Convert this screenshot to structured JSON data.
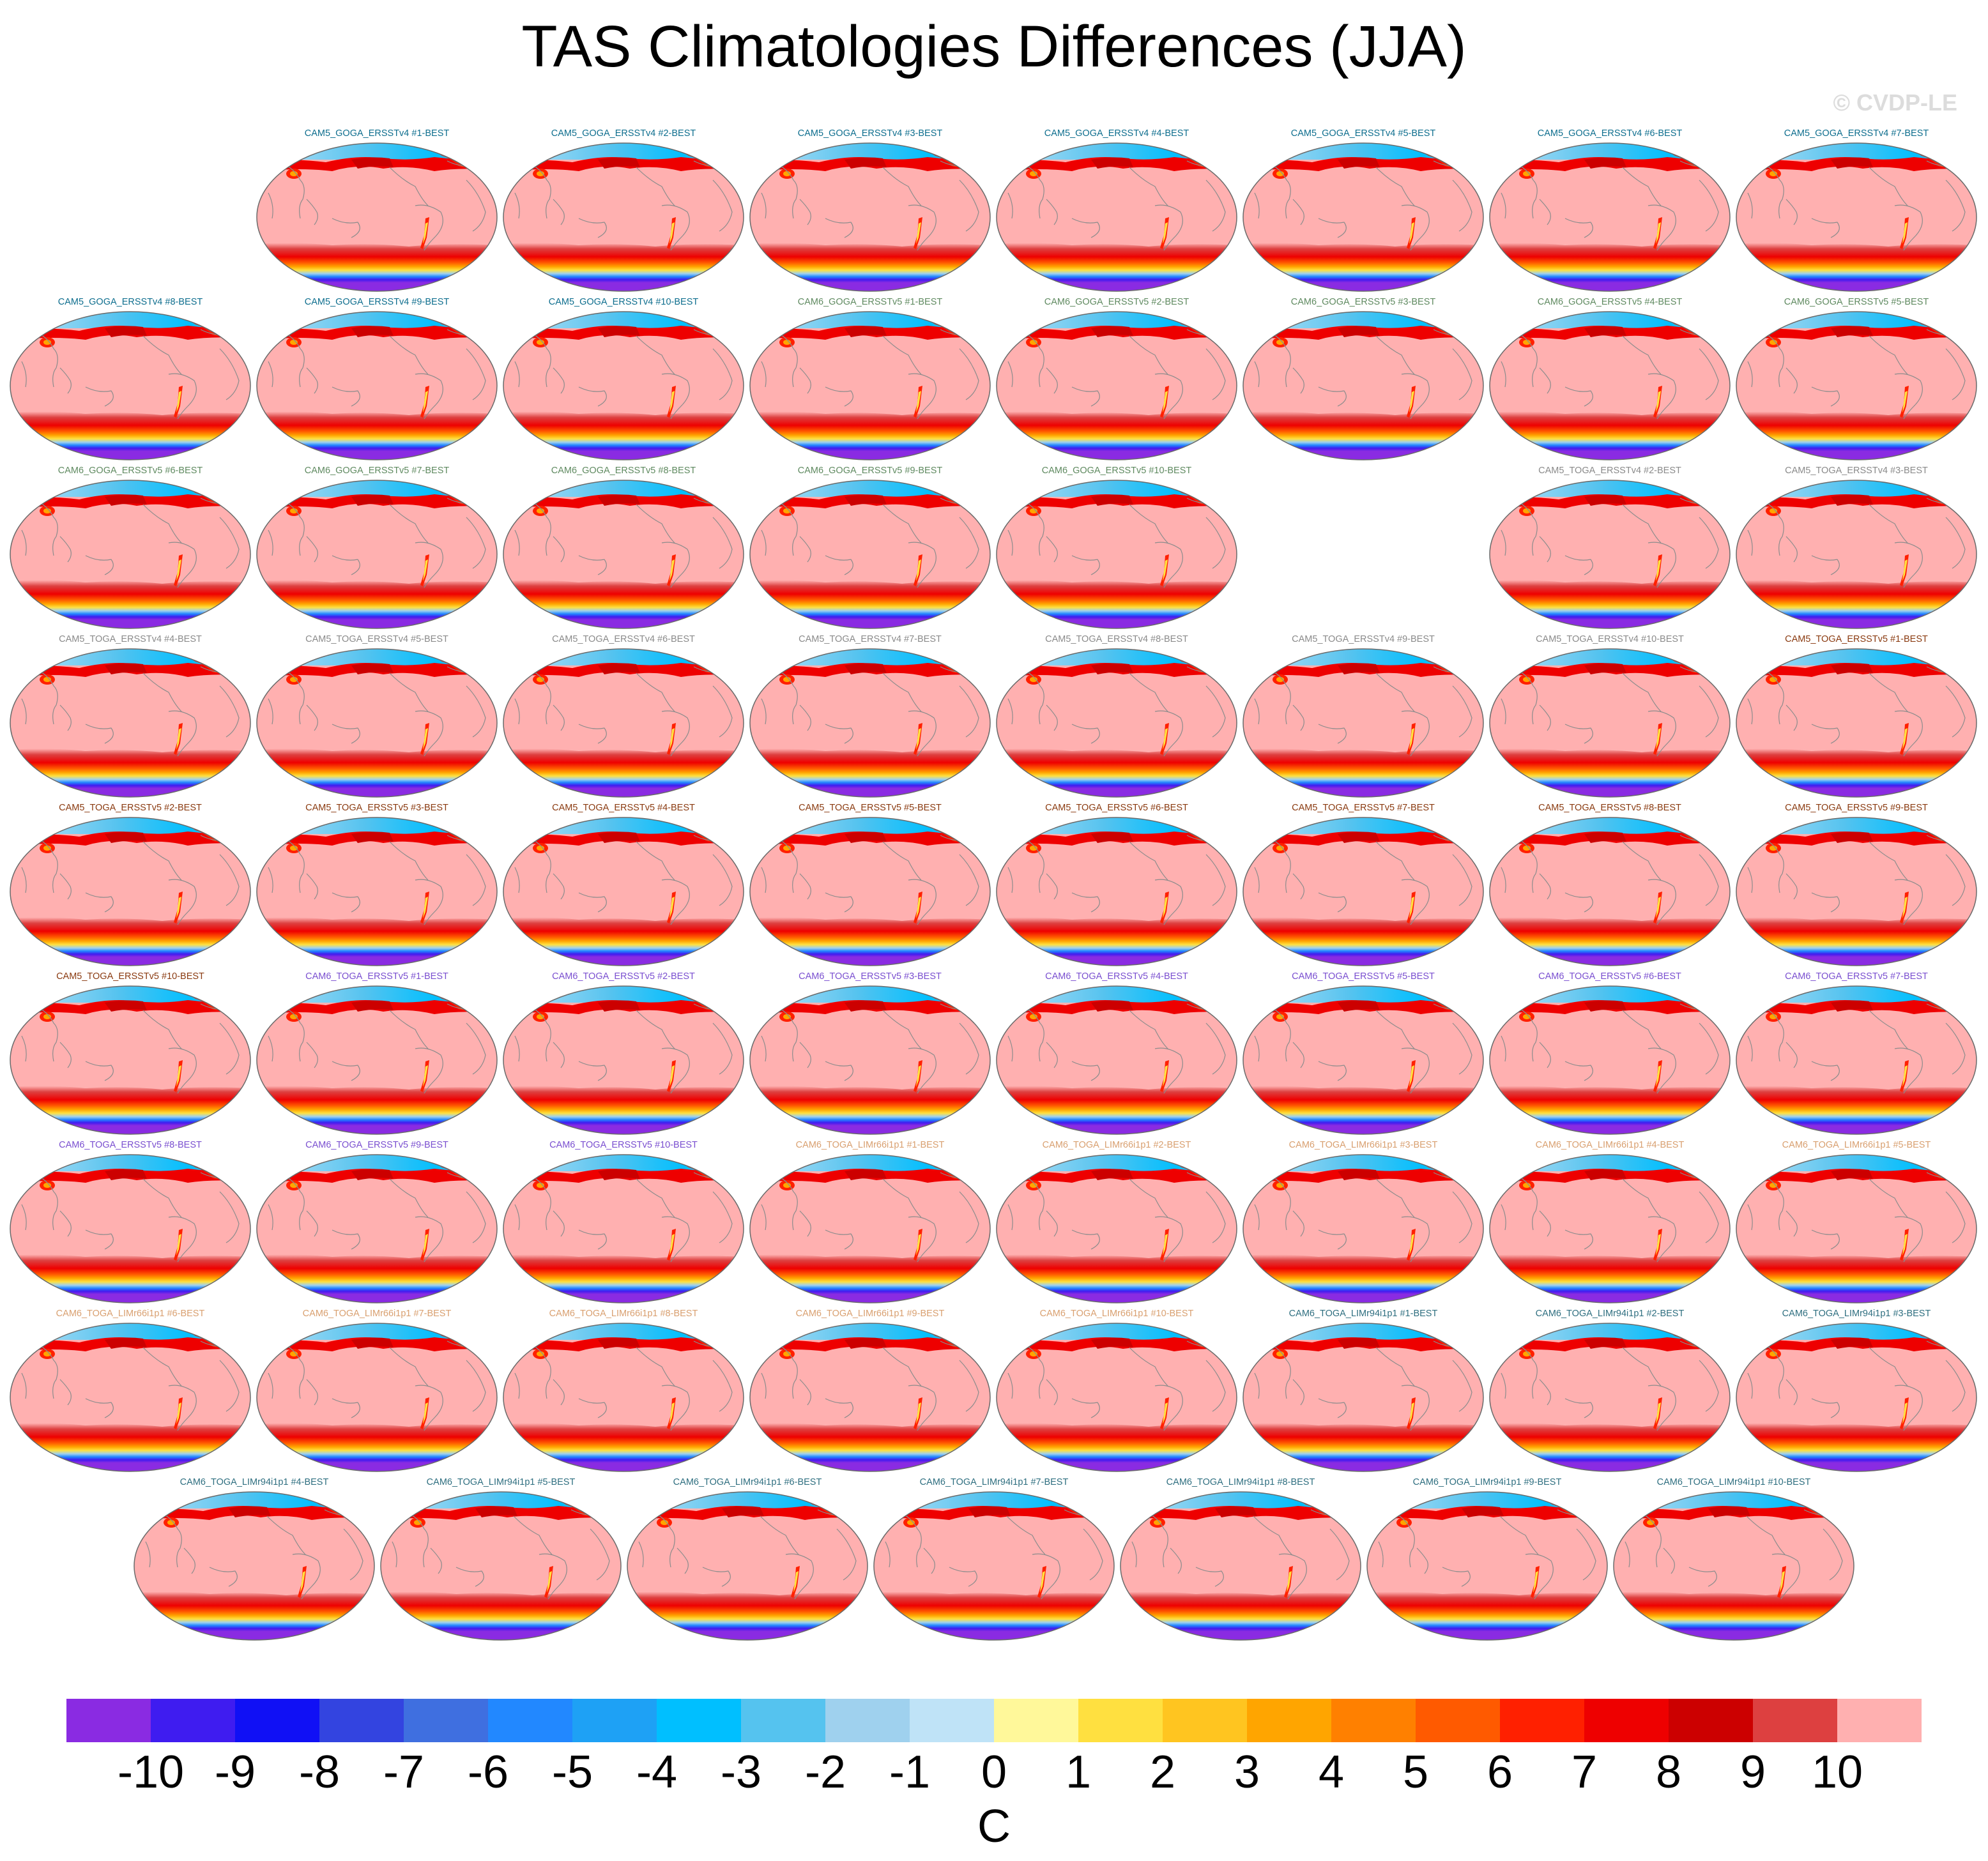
{
  "title": "TAS Climatologies Differences (JJA)",
  "credit": "© CVDP-LE",
  "chart_data": {
    "type": "map-panel-grid",
    "variable": "TAS",
    "season": "JJA",
    "projection": "robinson",
    "units": "C",
    "colorbar": {
      "ticks": [
        "-10",
        "-9",
        "-8",
        "-7",
        "-6",
        "-5",
        "-4",
        "-3",
        "-2",
        "-1",
        "0",
        "1",
        "2",
        "3",
        "4",
        "5",
        "6",
        "7",
        "8",
        "9",
        "10"
      ],
      "levels": [
        -10,
        -9,
        -8,
        -7,
        -6,
        -5,
        -4,
        -3,
        -2,
        -1,
        0,
        1,
        2,
        3,
        4,
        5,
        6,
        7,
        8,
        9,
        10
      ],
      "colors": [
        "#8a2be2",
        "#3f1cf0",
        "#1010f5",
        "#3344e0",
        "#3f6fe0",
        "#2288ff",
        "#1ea1f5",
        "#00bfff",
        "#55c3ef",
        "#9fd1ee",
        "#bfe3f7",
        "#fff89a",
        "#ffe040",
        "#ffc520",
        "#ffa500",
        "#ff8000",
        "#ff5a00",
        "#ff2000",
        "#ee0000",
        "#cc0000",
        "#dd4040",
        "#ffb0b0"
      ],
      "label": "C"
    },
    "panels": [
      {
        "label": "CAM5_GOGA_ERSSTv4 #1-BEST",
        "group": "CAM5_GOGA_ERSSTv4",
        "color": "#0e6e8e"
      },
      {
        "label": "CAM5_GOGA_ERSSTv4 #2-BEST",
        "group": "CAM5_GOGA_ERSSTv4",
        "color": "#0e6e8e"
      },
      {
        "label": "CAM5_GOGA_ERSSTv4 #3-BEST",
        "group": "CAM5_GOGA_ERSSTv4",
        "color": "#0e6e8e"
      },
      {
        "label": "CAM5_GOGA_ERSSTv4 #4-BEST",
        "group": "CAM5_GOGA_ERSSTv4",
        "color": "#0e6e8e"
      },
      {
        "label": "CAM5_GOGA_ERSSTv4 #5-BEST",
        "group": "CAM5_GOGA_ERSSTv4",
        "color": "#0e6e8e"
      },
      {
        "label": "CAM5_GOGA_ERSSTv4 #6-BEST",
        "group": "CAM5_GOGA_ERSSTv4",
        "color": "#0e6e8e"
      },
      {
        "label": "CAM5_GOGA_ERSSTv4 #7-BEST",
        "group": "CAM5_GOGA_ERSSTv4",
        "color": "#0e6e8e"
      },
      {
        "label": "CAM5_GOGA_ERSSTv4 #8-BEST",
        "group": "CAM5_GOGA_ERSSTv4",
        "color": "#0e6e8e"
      },
      {
        "label": "CAM5_GOGA_ERSSTv4 #9-BEST",
        "group": "CAM5_GOGA_ERSSTv4",
        "color": "#0e6e8e"
      },
      {
        "label": "CAM5_GOGA_ERSSTv4 #10-BEST",
        "group": "CAM5_GOGA_ERSSTv4",
        "color": "#0e6e8e"
      },
      {
        "label": "CAM6_GOGA_ERSSTv5 #1-BEST",
        "group": "CAM6_GOGA_ERSSTv5",
        "color": "#5f8a60"
      },
      {
        "label": "CAM6_GOGA_ERSSTv5 #2-BEST",
        "group": "CAM6_GOGA_ERSSTv5",
        "color": "#5f8a60"
      },
      {
        "label": "CAM6_GOGA_ERSSTv5 #3-BEST",
        "group": "CAM6_GOGA_ERSSTv5",
        "color": "#5f8a60"
      },
      {
        "label": "CAM6_GOGA_ERSSTv5 #4-BEST",
        "group": "CAM6_GOGA_ERSSTv5",
        "color": "#5f8a60"
      },
      {
        "label": "CAM6_GOGA_ERSSTv5 #5-BEST",
        "group": "CAM6_GOGA_ERSSTv5",
        "color": "#5f8a60"
      },
      {
        "label": "CAM6_GOGA_ERSSTv5 #6-BEST",
        "group": "CAM6_GOGA_ERSSTv5",
        "color": "#5f8a60"
      },
      {
        "label": "CAM6_GOGA_ERSSTv5 #7-BEST",
        "group": "CAM6_GOGA_ERSSTv5",
        "color": "#5f8a60"
      },
      {
        "label": "CAM6_GOGA_ERSSTv5 #8-BEST",
        "group": "CAM6_GOGA_ERSSTv5",
        "color": "#5f8a60"
      },
      {
        "label": "CAM6_GOGA_ERSSTv5 #9-BEST",
        "group": "CAM6_GOGA_ERSSTv5",
        "color": "#5f8a60"
      },
      {
        "label": "CAM6_GOGA_ERSSTv5 #10-BEST",
        "group": "CAM6_GOGA_ERSSTv5",
        "color": "#5f8a60"
      },
      {
        "label": "CAM5_TOGA_ERSSTv4 #2-BEST",
        "group": "CAM5_TOGA_ERSSTv4",
        "color": "#8a8a8a"
      },
      {
        "label": "CAM5_TOGA_ERSSTv4 #3-BEST",
        "group": "CAM5_TOGA_ERSSTv4",
        "color": "#8a8a8a"
      },
      {
        "label": "CAM5_TOGA_ERSSTv4 #4-BEST",
        "group": "CAM5_TOGA_ERSSTv4",
        "color": "#8a8a8a"
      },
      {
        "label": "CAM5_TOGA_ERSSTv4 #5-BEST",
        "group": "CAM5_TOGA_ERSSTv4",
        "color": "#8a8a8a"
      },
      {
        "label": "CAM5_TOGA_ERSSTv4 #6-BEST",
        "group": "CAM5_TOGA_ERSSTv4",
        "color": "#8a8a8a"
      },
      {
        "label": "CAM5_TOGA_ERSSTv4 #7-BEST",
        "group": "CAM5_TOGA_ERSSTv4",
        "color": "#8a8a8a"
      },
      {
        "label": "CAM5_TOGA_ERSSTv4 #8-BEST",
        "group": "CAM5_TOGA_ERSSTv4",
        "color": "#8a8a8a"
      },
      {
        "label": "CAM5_TOGA_ERSSTv4 #9-BEST",
        "group": "CAM5_TOGA_ERSSTv4",
        "color": "#8a8a8a"
      },
      {
        "label": "CAM5_TOGA_ERSSTv4 #10-BEST",
        "group": "CAM5_TOGA_ERSSTv4",
        "color": "#8a8a8a"
      },
      {
        "label": "CAM5_TOGA_ERSSTv5 #1-BEST",
        "group": "CAM5_TOGA_ERSSTv5",
        "color": "#8a3a10"
      },
      {
        "label": "CAM5_TOGA_ERSSTv5 #2-BEST",
        "group": "CAM5_TOGA_ERSSTv5",
        "color": "#8a3a10"
      },
      {
        "label": "CAM5_TOGA_ERSSTv5 #3-BEST",
        "group": "CAM5_TOGA_ERSSTv5",
        "color": "#8a3a10"
      },
      {
        "label": "CAM5_TOGA_ERSSTv5 #4-BEST",
        "group": "CAM5_TOGA_ERSSTv5",
        "color": "#8a3a10"
      },
      {
        "label": "CAM5_TOGA_ERSSTv5 #5-BEST",
        "group": "CAM5_TOGA_ERSSTv5",
        "color": "#8a3a10"
      },
      {
        "label": "CAM5_TOGA_ERSSTv5 #6-BEST",
        "group": "CAM5_TOGA_ERSSTv5",
        "color": "#8a3a10"
      },
      {
        "label": "CAM5_TOGA_ERSSTv5 #7-BEST",
        "group": "CAM5_TOGA_ERSSTv5",
        "color": "#8a3a10"
      },
      {
        "label": "CAM5_TOGA_ERSSTv5 #8-BEST",
        "group": "CAM5_TOGA_ERSSTv5",
        "color": "#8a3a10"
      },
      {
        "label": "CAM5_TOGA_ERSSTv5 #9-BEST",
        "group": "CAM5_TOGA_ERSSTv5",
        "color": "#8a3a10"
      },
      {
        "label": "CAM5_TOGA_ERSSTv5 #10-BEST",
        "group": "CAM5_TOGA_ERSSTv5",
        "color": "#8a3a10"
      },
      {
        "label": "CAM6_TOGA_ERSSTv5 #1-BEST",
        "group": "CAM6_TOGA_ERSSTv5",
        "color": "#7a4fd0"
      },
      {
        "label": "CAM6_TOGA_ERSSTv5 #2-BEST",
        "group": "CAM6_TOGA_ERSSTv5",
        "color": "#7a4fd0"
      },
      {
        "label": "CAM6_TOGA_ERSSTv5 #3-BEST",
        "group": "CAM6_TOGA_ERSSTv5",
        "color": "#7a4fd0"
      },
      {
        "label": "CAM6_TOGA_ERSSTv5 #4-BEST",
        "group": "CAM6_TOGA_ERSSTv5",
        "color": "#7a4fd0"
      },
      {
        "label": "CAM6_TOGA_ERSSTv5 #5-BEST",
        "group": "CAM6_TOGA_ERSSTv5",
        "color": "#7a4fd0"
      },
      {
        "label": "CAM6_TOGA_ERSSTv5 #6-BEST",
        "group": "CAM6_TOGA_ERSSTv5",
        "color": "#7a4fd0"
      },
      {
        "label": "CAM6_TOGA_ERSSTv5 #7-BEST",
        "group": "CAM6_TOGA_ERSSTv5",
        "color": "#7a4fd0"
      },
      {
        "label": "CAM6_TOGA_ERSSTv5 #8-BEST",
        "group": "CAM6_TOGA_ERSSTv5",
        "color": "#7a4fd0"
      },
      {
        "label": "CAM6_TOGA_ERSSTv5 #9-BEST",
        "group": "CAM6_TOGA_ERSSTv5",
        "color": "#7a4fd0"
      },
      {
        "label": "CAM6_TOGA_ERSSTv5 #10-BEST",
        "group": "CAM6_TOGA_ERSSTv5",
        "color": "#7a4fd0"
      },
      {
        "label": "CAM6_TOGA_LIMr66i1p1 #1-BEST",
        "group": "CAM6_TOGA_LIMr66i1p1",
        "color": "#d9a070"
      },
      {
        "label": "CAM6_TOGA_LIMr66i1p1 #2-BEST",
        "group": "CAM6_TOGA_LIMr66i1p1",
        "color": "#d9a070"
      },
      {
        "label": "CAM6_TOGA_LIMr66i1p1 #3-BEST",
        "group": "CAM6_TOGA_LIMr66i1p1",
        "color": "#d9a070"
      },
      {
        "label": "CAM6_TOGA_LIMr66i1p1 #4-BEST",
        "group": "CAM6_TOGA_LIMr66i1p1",
        "color": "#d9a070"
      },
      {
        "label": "CAM6_TOGA_LIMr66i1p1 #5-BEST",
        "group": "CAM6_TOGA_LIMr66i1p1",
        "color": "#d9a070"
      },
      {
        "label": "CAM6_TOGA_LIMr66i1p1 #6-BEST",
        "group": "CAM6_TOGA_LIMr66i1p1",
        "color": "#d9a070"
      },
      {
        "label": "CAM6_TOGA_LIMr66i1p1 #7-BEST",
        "group": "CAM6_TOGA_LIMr66i1p1",
        "color": "#d9a070"
      },
      {
        "label": "CAM6_TOGA_LIMr66i1p1 #8-BEST",
        "group": "CAM6_TOGA_LIMr66i1p1",
        "color": "#d9a070"
      },
      {
        "label": "CAM6_TOGA_LIMr66i1p1 #9-BEST",
        "group": "CAM6_TOGA_LIMr66i1p1",
        "color": "#d9a070"
      },
      {
        "label": "CAM6_TOGA_LIMr66i1p1 #10-BEST",
        "group": "CAM6_TOGA_LIMr66i1p1",
        "color": "#d9a070"
      },
      {
        "label": "CAM6_TOGA_LIMr94i1p1 #1-BEST",
        "group": "CAM6_TOGA_LIMr94i1p1",
        "color": "#2f6f80"
      },
      {
        "label": "CAM6_TOGA_LIMr94i1p1 #2-BEST",
        "group": "CAM6_TOGA_LIMr94i1p1",
        "color": "#2f6f80"
      },
      {
        "label": "CAM6_TOGA_LIMr94i1p1 #3-BEST",
        "group": "CAM6_TOGA_LIMr94i1p1",
        "color": "#2f6f80"
      },
      {
        "label": "CAM6_TOGA_LIMr94i1p1 #4-BEST",
        "group": "CAM6_TOGA_LIMr94i1p1",
        "color": "#2f6f80"
      },
      {
        "label": "CAM6_TOGA_LIMr94i1p1 #5-BEST",
        "group": "CAM6_TOGA_LIMr94i1p1",
        "color": "#2f6f80"
      },
      {
        "label": "CAM6_TOGA_LIMr94i1p1 #6-BEST",
        "group": "CAM6_TOGA_LIMr94i1p1",
        "color": "#2f6f80"
      },
      {
        "label": "CAM6_TOGA_LIMr94i1p1 #7-BEST",
        "group": "CAM6_TOGA_LIMr94i1p1",
        "color": "#2f6f80"
      },
      {
        "label": "CAM6_TOGA_LIMr94i1p1 #8-BEST",
        "group": "CAM6_TOGA_LIMr94i1p1",
        "color": "#2f6f80"
      },
      {
        "label": "CAM6_TOGA_LIMr94i1p1 #9-BEST",
        "group": "CAM6_TOGA_LIMr94i1p1",
        "color": "#2f6f80"
      },
      {
        "label": "CAM6_TOGA_LIMr94i1p1 #10-BEST",
        "group": "CAM6_TOGA_LIMr94i1p1",
        "color": "#2f6f80"
      }
    ]
  }
}
